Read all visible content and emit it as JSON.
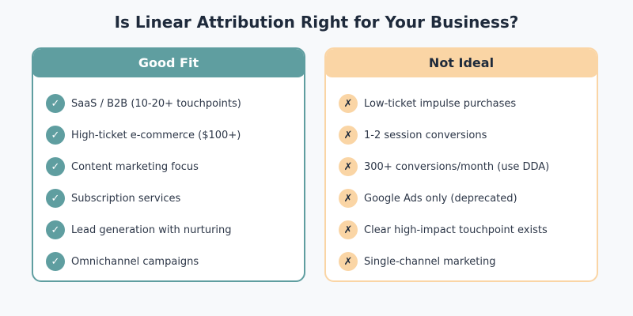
{
  "title": "Is Linear Attribution Right for Your Business?",
  "colors": {
    "background": "#f7f9fb",
    "good_accent": "#5f9ea0",
    "bad_accent": "#fad5a5",
    "text_dark": "#1e2a3b"
  },
  "good_fit": {
    "header": "Good Fit",
    "icon": "check-icon",
    "glyph": "✓",
    "items": [
      "SaaS / B2B (10-20+ touchpoints)",
      "High-ticket e-commerce ($100+)",
      "Content marketing focus",
      "Subscription services",
      "Lead generation with nurturing",
      "Omnichannel campaigns"
    ]
  },
  "not_ideal": {
    "header": "Not Ideal",
    "icon": "cross-icon",
    "glyph": "✗",
    "items": [
      "Low-ticket impulse purchases",
      "1-2 session conversions",
      "300+ conversions/month (use DDA)",
      "Google Ads only (deprecated)",
      "Clear high-impact touchpoint exists",
      "Single-channel marketing"
    ]
  }
}
